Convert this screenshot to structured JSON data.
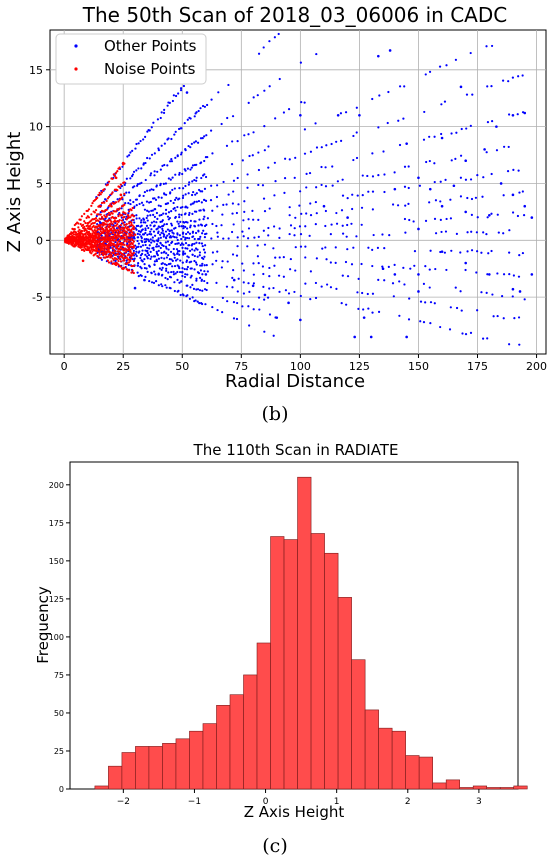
{
  "charts": [
    {
      "id": "scatter",
      "chart_data": {
        "type": "scatter",
        "title": "The 50th Scan of 2018_03_06006 in CADC",
        "xlabel": "Radial Distance",
        "ylabel": "Z Axis Height",
        "xlim": [
          -6,
          204
        ],
        "ylim": [
          -10,
          18.5
        ],
        "xticks": [
          0,
          25,
          50,
          75,
          100,
          125,
          150,
          175,
          200
        ],
        "yticks": [
          -5,
          0,
          5,
          10,
          15
        ],
        "grid": true,
        "legend_position": "top-left",
        "series": [
          {
            "name": "Other Points",
            "color": "#0000ff",
            "points": [
              [
                52,
                13
              ],
              [
                133,
                16.2
              ],
              [
                138,
                16.7
              ],
              [
                100,
                11
              ],
              [
                116,
                11
              ],
              [
                125,
                11
              ],
              [
                145,
                8.5
              ],
              [
                160,
                9
              ],
              [
                168,
                13.5
              ],
              [
                190,
                11
              ],
              [
                195,
                11.2
              ],
              [
                183,
                10
              ],
              [
                178,
                8
              ],
              [
                170,
                7
              ],
              [
                150,
                5.5
              ],
              [
                185,
                5
              ],
              [
                190,
                4
              ],
              [
                195,
                3
              ],
              [
                198,
                2
              ],
              [
                193,
                -4.5
              ],
              [
                190,
                -4.3
              ],
              [
                180,
                -3
              ],
              [
                170,
                -2
              ],
              [
                160,
                -1
              ],
              [
                150,
                -4.5
              ],
              [
                140,
                -3
              ],
              [
                150,
                -3
              ],
              [
                135,
                -2.5
              ],
              [
                123,
                -8.5
              ],
              [
                130,
                -8.5
              ],
              [
                145,
                -8.5
              ],
              [
                127,
                -6.8
              ],
              [
                100,
                -7
              ],
              [
                90,
                -6.8
              ],
              [
                95,
                -5.5
              ],
              [
                85,
                -4.8
              ],
              [
                80,
                -4
              ],
              [
                72,
                -3.5
              ],
              [
                60,
                -3
              ],
              [
                50,
                -2.8
              ],
              [
                40,
                -3
              ],
              [
                30,
                -4.2
              ],
              [
                34,
                -3.5
              ],
              [
                150,
                1
              ],
              [
                170,
                2.5
              ],
              [
                180,
                2.2
              ],
              [
                198,
                -3
              ],
              [
                160,
                3
              ],
              [
                120,
                2
              ],
              [
                110,
                3
              ],
              [
                140,
                4.5
              ],
              [
                155,
                4.5
              ],
              [
                165,
                4.8
              ]
            ]
          },
          {
            "name": "Noise Points",
            "color": "#ff0000",
            "points": [
              [
                5,
                0.5
              ],
              [
                10,
                1.5
              ],
              [
                15,
                3
              ],
              [
                22,
                5.5
              ],
              [
                25,
                6.8
              ],
              [
                20,
                3
              ],
              [
                18,
                1
              ],
              [
                12,
                0
              ],
              [
                15,
                -1
              ],
              [
                8,
                -1.8
              ],
              [
                25,
                -2.5
              ],
              [
                22,
                -2
              ],
              [
                28,
                -1
              ],
              [
                30,
                0.5
              ],
              [
                27,
                2.2
              ],
              [
                24,
                4
              ]
            ]
          }
        ],
        "rays": {
          "blue_slopes": [
            0.27,
            0.2,
            0.155,
            0.12,
            0.095,
            0.075,
            0.058,
            0.044,
            0.032,
            0.022,
            0.012,
            0.004,
            -0.006,
            -0.016,
            -0.026,
            -0.036,
            -0.048,
            -0.06,
            -0.075,
            -0.095
          ],
          "red_slopes": [
            0.27,
            0.2,
            0.155,
            0.12,
            0.095,
            0.075,
            0.058,
            0.044,
            0.032,
            0.022,
            0.012,
            0.004,
            -0.006,
            -0.016,
            -0.026,
            -0.036,
            -0.048,
            -0.06,
            -0.075,
            -0.095
          ]
        }
      },
      "panel_label": "(b)"
    },
    {
      "id": "histogram",
      "chart_data": {
        "type": "bar",
        "title": "The 110th Scan in RADIATE",
        "xlabel": "Z Axis Height",
        "ylabel": "Frequency",
        "xlim": [
          -2.75,
          3.55
        ],
        "ylim": [
          0,
          215
        ],
        "xticks": [
          -2,
          -1,
          0,
          1,
          2,
          3
        ],
        "yticks": [
          0,
          25,
          50,
          75,
          100,
          125,
          150,
          175,
          200
        ],
        "grid": false,
        "bar_color": "#ff4c4c",
        "bin_start": -2.4,
        "bin_width": 0.19,
        "values": [
          2,
          15,
          24,
          28,
          28,
          30,
          33,
          38,
          43,
          55,
          62,
          75,
          96,
          166,
          164,
          205,
          168,
          155,
          126,
          85,
          52,
          40,
          38,
          22,
          21,
          4,
          6,
          1,
          2,
          1,
          1,
          2
        ]
      },
      "panel_label": "(c)"
    }
  ]
}
